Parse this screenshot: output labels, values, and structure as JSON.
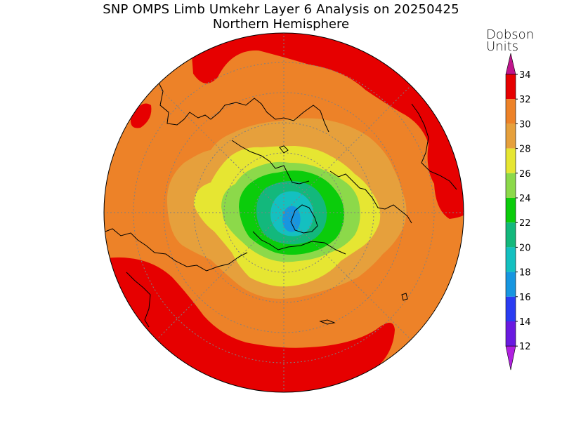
{
  "title": "SNP OMPS Limb Umkehr Layer 6 Analysis on 20250425",
  "subtitle": "Northern Hemisphere",
  "units": {
    "line1": "Dobson",
    "line2": "Units"
  },
  "colorbar": {
    "levels": [
      {
        "label": "34",
        "color": "#e60000"
      },
      {
        "label": "32",
        "color": "#ed8228"
      },
      {
        "label": "30",
        "color": "#e6a03c"
      },
      {
        "label": "28",
        "color": "#e6e632"
      },
      {
        "label": "26",
        "color": "#8cd94a"
      },
      {
        "label": "24",
        "color": "#0bcc0b"
      },
      {
        "label": "22",
        "color": "#13b87c"
      },
      {
        "label": "20",
        "color": "#14c0c0"
      },
      {
        "label": "18",
        "color": "#1796e0"
      },
      {
        "label": "16",
        "color": "#2a3cf2"
      },
      {
        "label": "14",
        "color": "#6a1ae0"
      },
      {
        "label": "12",
        "color": "#a020e0"
      }
    ],
    "top_arrow_color": "#c0148c",
    "bottom_arrow_color": "#b020e0"
  },
  "colors": {
    "band_34": "#e60000",
    "band_32": "#ed8228",
    "band_30": "#e6a03c",
    "band_28": "#e6e632",
    "band_26": "#8cd94a",
    "band_24": "#0bcc0b",
    "band_22": "#13b87c",
    "band_20": "#14c0c0",
    "band_18": "#1796e0"
  }
}
